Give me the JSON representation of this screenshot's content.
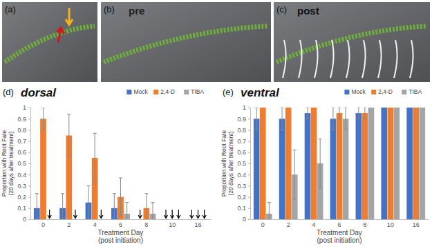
{
  "panels": [
    {
      "label": "(a)"
    },
    {
      "label": "(b)",
      "caption": "pre"
    },
    {
      "label": "(c)",
      "caption": "post"
    },
    {
      "label": "(d)"
    },
    {
      "label": "(e)"
    }
  ],
  "chart_data": [
    {
      "type": "bar",
      "title": "dorsal",
      "x_label": [
        "Treatment Day",
        "(post initiation)"
      ],
      "y_label": [
        "Proportion with Root Fate",
        "(20 days after treatment)"
      ],
      "categories": [
        "0",
        "2",
        "4",
        "6",
        "8",
        "10",
        "16"
      ],
      "series": [
        {
          "name": "Mock",
          "color": "#4472c4",
          "values": [
            0.1,
            0.1,
            0.15,
            0.1,
            0,
            0,
            0
          ],
          "errors": [
            0.13,
            0.13,
            0.15,
            0.13,
            0,
            0,
            0
          ]
        },
        {
          "name": "2,4-D",
          "color": "#ed7d31",
          "values": [
            0.9,
            0.75,
            0.55,
            0.2,
            0.1,
            0,
            0
          ],
          "errors": [
            0.1,
            0.19,
            0.22,
            0.17,
            0.13,
            0,
            0
          ]
        },
        {
          "name": "TIBA",
          "color": "#a5a5a5",
          "values": [
            0,
            0,
            0,
            0.05,
            0.05,
            0,
            0
          ],
          "errors": [
            0,
            0,
            0,
            0.1,
            0.1,
            0,
            0
          ]
        }
      ],
      "ylim": [
        0,
        1
      ],
      "yticks": [
        0,
        0.1,
        0.2,
        0.3,
        0.4,
        0.5,
        0.6,
        0.7,
        0.8,
        0.9,
        1
      ],
      "grid": false,
      "legend": "upper right"
    },
    {
      "type": "bar",
      "title": "ventral",
      "x_label": [
        "Treatment Day",
        "(post initiation)"
      ],
      "y_label": [
        "Proportion with Root Fate",
        "(20 days after treatment)"
      ],
      "categories": [
        "0",
        "2",
        "4",
        "6",
        "8",
        "10",
        "16"
      ],
      "series": [
        {
          "name": "Mock",
          "color": "#4472c4",
          "values": [
            0.9,
            0.9,
            0.95,
            0.9,
            0.95,
            1,
            1
          ],
          "errors": [
            0.1,
            0.1,
            0.05,
            0.1,
            0.05,
            0,
            0
          ]
        },
        {
          "name": "2,4-D",
          "color": "#ed7d31",
          "values": [
            1,
            1,
            1,
            0.95,
            0.95,
            1,
            1
          ],
          "errors": [
            0,
            0,
            0,
            0.05,
            0.05,
            0,
            0
          ]
        },
        {
          "name": "TIBA",
          "color": "#a5a5a5",
          "values": [
            0.05,
            0.4,
            0.5,
            0.9,
            1,
            1,
            1
          ],
          "errors": [
            0.1,
            0.22,
            0.22,
            0.1,
            0,
            0,
            0
          ]
        }
      ],
      "ylim": [
        0,
        1
      ],
      "yticks": [
        0,
        0.1,
        0.2,
        0.3,
        0.4,
        0.5,
        0.6,
        0.7,
        0.8,
        0.9,
        1
      ],
      "grid": false,
      "legend": "upper right"
    }
  ]
}
